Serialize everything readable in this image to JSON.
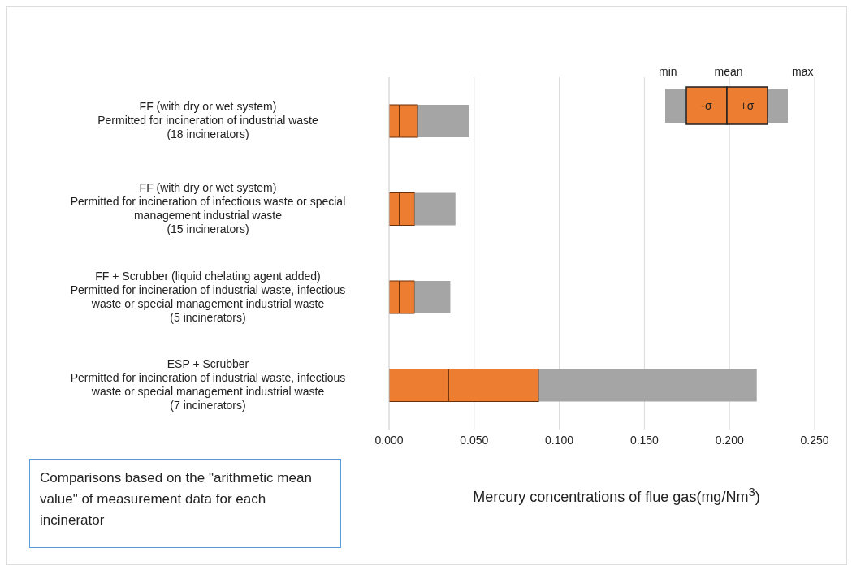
{
  "chart_data": {
    "type": "bar",
    "orientation": "horizontal",
    "stacked": true,
    "xlabel": "Mercury concentrations of flue gas(mg/Nm$^{3}$)",
    "categories": [
      "FF (with dry or wet system)\nPermitted for incineration of industrial waste\n(18 incinerators)",
      "FF (with dry or wet system)\nPermitted for incineration of infectious waste or special\nmanagement industrial waste\n(15 incinerators)",
      "FF + Scrubber (liquid chelating agent added)\nPermitted for incineration of industrial waste, infectious\nwaste or special management industrial waste\n(5 incinerators)",
      "ESP + Scrubber\nPermitted for incineration of industrial waste, infectious\nwaste or special management industrial waste\n(7 incinerators)"
    ],
    "series": [
      {
        "color": "#ed7d31",
        "values": [
          0.006,
          0.006,
          0.006,
          0.035
        ]
      },
      {
        "color": "#ed7d31",
        "values": [
          0.011,
          0.009,
          0.009,
          0.053
        ]
      },
      {
        "color": "#a5a5a5",
        "values": [
          0.03,
          0.024,
          0.021,
          0.128
        ]
      }
    ],
    "xlim": [
      0,
      0.25
    ],
    "xticks": [
      {
        "value": 0,
        "label": "0.000"
      },
      {
        "value": 0.05,
        "label": "0.050"
      },
      {
        "value": 0.1,
        "label": "0.100"
      },
      {
        "value": 0.15,
        "label": "0.150"
      },
      {
        "value": 0.2,
        "label": "0.200"
      },
      {
        "value": 0.25,
        "label": "0.250"
      }
    ],
    "grid": "x",
    "annotations": [
      "min",
      "mean",
      "max",
      "-σ",
      "+σ",
      "Comparisons based on the \"arithmetic mean value\" of measurement data for each incinerator"
    ]
  }
}
